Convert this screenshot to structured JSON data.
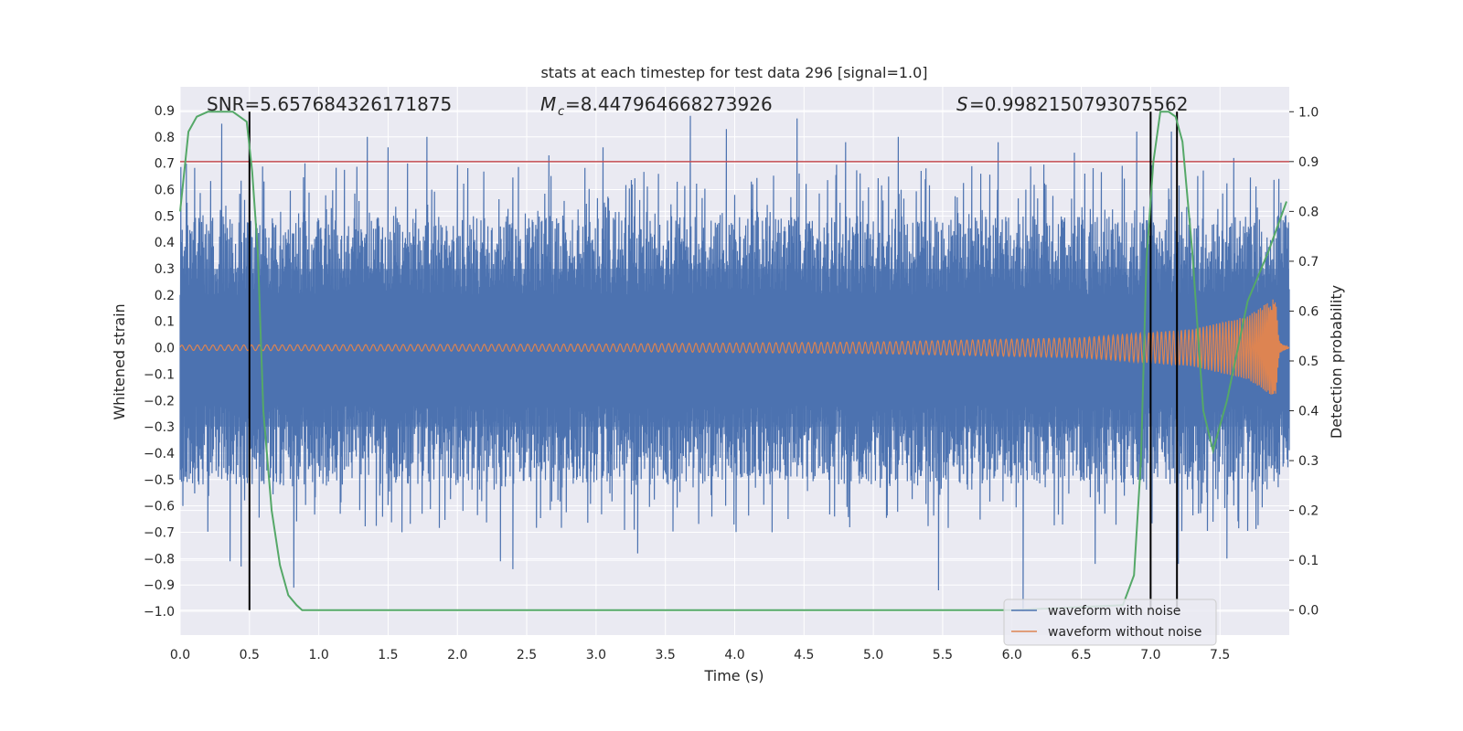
{
  "chart_data": {
    "type": "line",
    "title": "stats at each timestep for test data 296 [signal=1.0]",
    "xlabel": "Time (s)",
    "ylabel": "Whitened strain",
    "y2label": "Detection probability",
    "xlim": [
      0,
      8.0
    ],
    "ylim": [
      -1.09,
      0.99
    ],
    "y2lim": [
      -0.05,
      1.05
    ],
    "xticks": [
      0.0,
      0.5,
      1.0,
      1.5,
      2.0,
      2.5,
      3.0,
      3.5,
      4.0,
      4.5,
      5.0,
      5.5,
      6.0,
      6.5,
      7.0,
      7.5
    ],
    "yticks": [
      -1.0,
      -0.9,
      -0.8,
      -0.7,
      -0.6,
      -0.5,
      -0.4,
      -0.3,
      -0.2,
      -0.1,
      0.0,
      0.1,
      0.2,
      0.3,
      0.4,
      0.5,
      0.6,
      0.7,
      0.8,
      0.9
    ],
    "y2ticks": [
      0.0,
      0.1,
      0.2,
      0.3,
      0.4,
      0.5,
      0.6,
      0.7,
      0.8,
      0.9,
      1.0
    ],
    "grid": true,
    "legend_position": "lower-right",
    "stats": {
      "snr": "SNR=5.657684326171875",
      "mc_value": "=8.447964668273926",
      "s_value": "=0.9982150793075562"
    },
    "threshold": {
      "value": 0.9,
      "axis": "right",
      "color": "#c44e52"
    },
    "vlines": [
      {
        "x": 0.5,
        "y_from": 0.0,
        "y_to": 1.0
      },
      {
        "x": 7.0,
        "y_from": 0.0,
        "y_to": 1.0
      },
      {
        "x": 7.19,
        "y_from": 0.0,
        "y_to": 1.0
      }
    ],
    "series": [
      {
        "name": "waveform with noise",
        "color": "#4c72b0",
        "axis": "left",
        "description": "dense noisy strain, band mostly within about -0.45..0.45 with spikes",
        "max_points": [
          [
            0.05,
            0.55
          ],
          [
            0.3,
            0.85
          ],
          [
            0.9,
            0.7
          ],
          [
            1.35,
            0.8
          ],
          [
            1.5,
            0.76
          ],
          [
            1.78,
            0.8
          ],
          [
            2.66,
            0.73
          ],
          [
            3.05,
            0.76
          ],
          [
            3.68,
            0.88
          ],
          [
            3.94,
            0.83
          ],
          [
            4.45,
            0.87
          ],
          [
            4.8,
            0.78
          ],
          [
            5.18,
            0.8
          ],
          [
            5.9,
            0.78
          ],
          [
            6.45,
            0.74
          ],
          [
            6.9,
            0.82
          ],
          [
            7.15,
            0.82
          ],
          [
            7.6,
            0.72
          ]
        ],
        "min_points": [
          [
            0.02,
            -0.6
          ],
          [
            0.36,
            -0.81
          ],
          [
            0.44,
            -0.83
          ],
          [
            0.82,
            -0.91
          ],
          [
            1.6,
            -0.7
          ],
          [
            2.31,
            -0.81
          ],
          [
            2.4,
            -0.84
          ],
          [
            3.3,
            -0.78
          ],
          [
            4.27,
            -0.7
          ],
          [
            5.47,
            -0.92
          ],
          [
            6.08,
            -1.0
          ],
          [
            6.6,
            -0.82
          ],
          [
            7.2,
            -0.82
          ],
          [
            7.55,
            -0.8
          ]
        ]
      },
      {
        "name": "waveform without noise",
        "color": "#dd8452",
        "axis": "left",
        "description": "chirp signal, amplitude growing from 0.01 to peak near 7.92 s",
        "amplitude_points": [
          [
            0.0,
            0.01
          ],
          [
            3.0,
            0.014
          ],
          [
            5.0,
            0.022
          ],
          [
            6.5,
            0.038
          ],
          [
            7.3,
            0.07
          ],
          [
            7.7,
            0.12
          ],
          [
            7.9,
            0.19
          ],
          [
            7.93,
            0.02
          ],
          [
            8.0,
            0.0
          ]
        ]
      },
      {
        "name": "detection probability",
        "color": "#55a868",
        "axis": "right",
        "x": [
          0.0,
          0.06,
          0.12,
          0.2,
          0.3,
          0.38,
          0.43,
          0.48,
          0.52,
          0.56,
          0.6,
          0.66,
          0.72,
          0.78,
          0.84,
          0.88,
          1.0,
          6.0,
          6.8,
          6.88,
          6.93,
          6.97,
          7.02,
          7.07,
          7.13,
          7.18,
          7.23,
          7.3,
          7.38,
          7.45,
          7.55,
          7.7,
          7.85,
          7.98
        ],
        "y": [
          0.8,
          0.96,
          0.99,
          1.0,
          1.0,
          1.0,
          0.99,
          0.98,
          0.88,
          0.72,
          0.4,
          0.2,
          0.09,
          0.03,
          0.01,
          0.0,
          0.0,
          0.0,
          0.01,
          0.07,
          0.3,
          0.7,
          0.9,
          1.0,
          1.0,
          0.99,
          0.94,
          0.72,
          0.4,
          0.32,
          0.42,
          0.62,
          0.72,
          0.82
        ]
      }
    ]
  }
}
